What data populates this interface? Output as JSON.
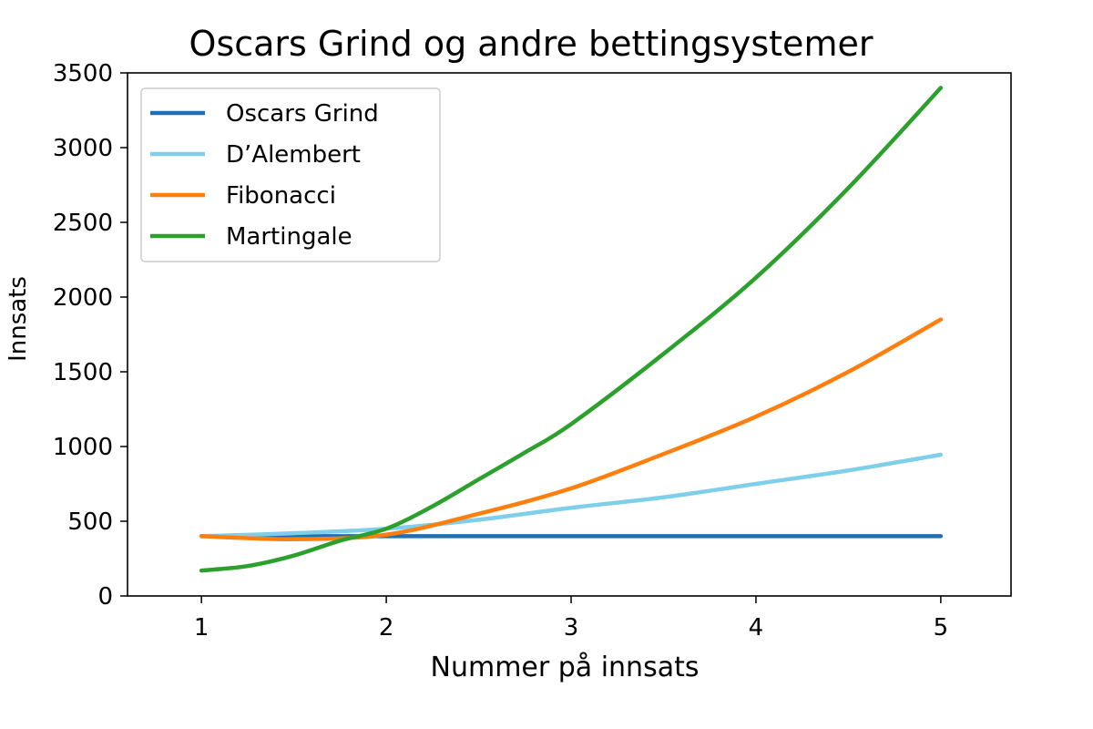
{
  "chart_data": {
    "type": "line",
    "title": "Oscars Grind og andre bettingsystemer",
    "xlabel": "Nummer på innsats",
    "ylabel": "Innsats",
    "xlim": [
      0.6,
      5.38
    ],
    "ylim": [
      0,
      3500
    ],
    "xticks": [
      1,
      2,
      3,
      4,
      5
    ],
    "yticks": [
      0,
      500,
      1000,
      1500,
      2000,
      2500,
      3000,
      3500
    ],
    "grid": false,
    "legend_position": "top-left",
    "series": [
      {
        "name": "Oscars Grind",
        "color": "#1f6fb4",
        "x": [
          1,
          1.5,
          2,
          2.5,
          3,
          3.5,
          4,
          4.5,
          5
        ],
        "y": [
          400,
          400,
          400,
          400,
          400,
          400,
          400,
          400,
          400
        ]
      },
      {
        "name": "D’Alembert",
        "color": "#7fcfea",
        "x": [
          1,
          1.5,
          2,
          2.5,
          3,
          3.5,
          4,
          4.5,
          5
        ],
        "y": [
          400,
          420,
          450,
          510,
          590,
          660,
          750,
          840,
          945
        ]
      },
      {
        "name": "Fibonacci",
        "color": "#ff7f0e",
        "x": [
          1,
          1.5,
          2,
          2.5,
          3,
          3.5,
          4,
          4.5,
          5
        ],
        "y": [
          400,
          380,
          410,
          550,
          720,
          950,
          1200,
          1500,
          1850
        ]
      },
      {
        "name": "Martingale",
        "color": "#2ca02c",
        "x": [
          1,
          1.25,
          1.5,
          1.75,
          2,
          2.25,
          2.5,
          2.75,
          3,
          3.5,
          4,
          4.5,
          5
        ],
        "y": [
          170,
          200,
          270,
          370,
          450,
          600,
          780,
          960,
          1150,
          1620,
          2130,
          2730,
          3400
        ]
      }
    ]
  }
}
